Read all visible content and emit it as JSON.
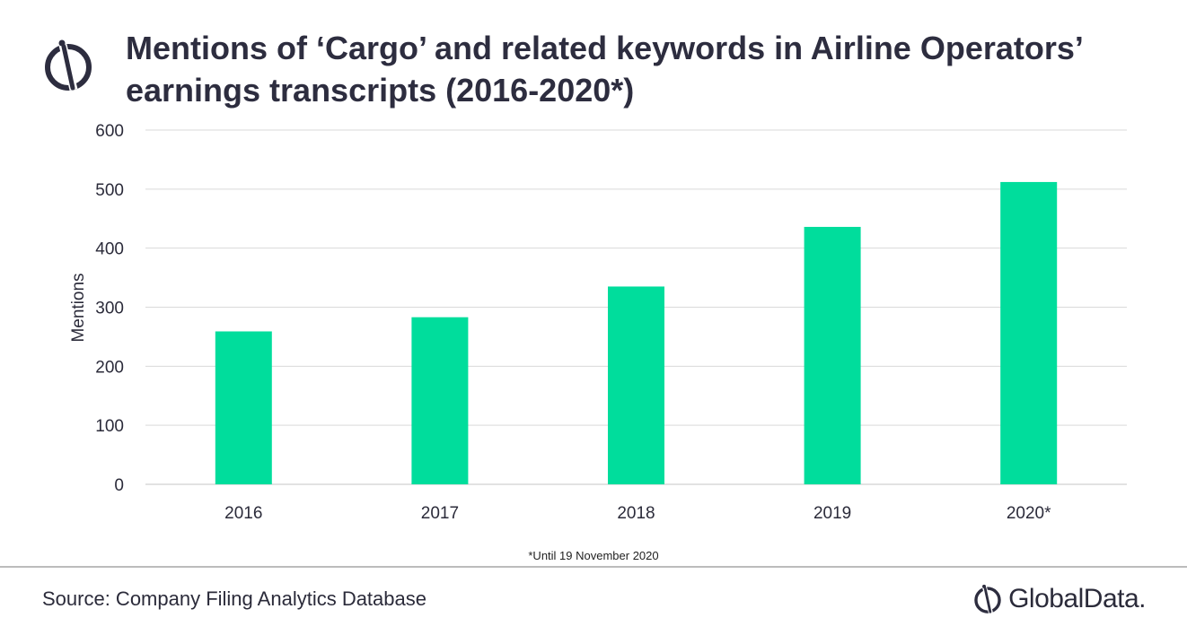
{
  "title_lines": [
    "Mentions of ‘Cargo’ and related keywords in Airline Operators’",
    "earnings transcripts (2016-2020*)"
  ],
  "footnote": "*Until 19 November 2020",
  "source": "Source: Company Filing Analytics Database",
  "brand": {
    "name": "GlobalData.",
    "icon": "globaldata-logo-icon"
  },
  "colors": {
    "bar": "#00dd9c",
    "grid": "#d9d9d9",
    "text": "#2b2b3a"
  },
  "chart_data": {
    "type": "bar",
    "title": "Mentions of ‘Cargo’ and related keywords in Airline Operators’ earnings transcripts (2016-2020*)",
    "categories": [
      "2016",
      "2017",
      "2018",
      "2019",
      "2020*"
    ],
    "values": [
      259,
      283,
      335,
      436,
      512
    ],
    "xlabel": "",
    "ylabel": "Mentions",
    "ylim": [
      0,
      600
    ],
    "yticks": [
      0,
      100,
      200,
      300,
      400,
      500,
      600
    ],
    "grid": true,
    "legend": "none"
  }
}
